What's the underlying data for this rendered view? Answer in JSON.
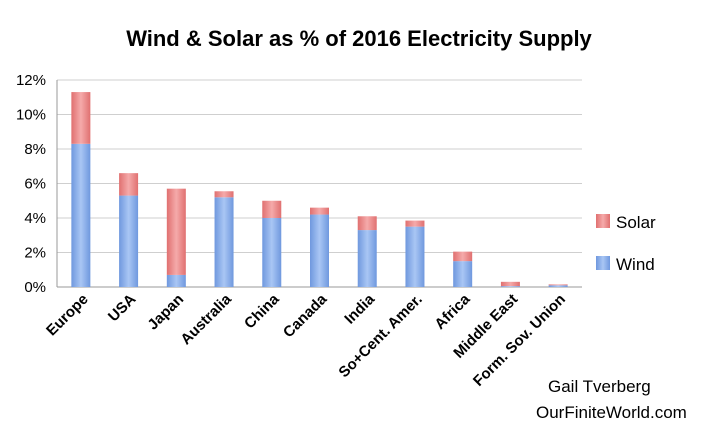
{
  "chart_data": {
    "type": "bar",
    "stacked": true,
    "title": "Wind & Solar as % of 2016 Electricity Supply",
    "categories": [
      "Europe",
      "USA",
      "Japan",
      "Australia",
      "China",
      "Canada",
      "India",
      "So+Cent. Amer.",
      "Africa",
      "Middle East",
      "Form. Sov. Union"
    ],
    "series": [
      {
        "name": "Wind",
        "color": "#7ea6e8",
        "values": [
          8.3,
          5.3,
          0.7,
          5.2,
          4.0,
          4.2,
          3.3,
          3.5,
          1.5,
          0.05,
          0.1
        ]
      },
      {
        "name": "Solar",
        "color": "#e88080",
        "values": [
          3.0,
          1.3,
          5.0,
          0.35,
          1.0,
          0.4,
          0.8,
          0.35,
          0.55,
          0.25,
          0.05
        ]
      }
    ],
    "y_ticks": [
      "0%",
      "2%",
      "4%",
      "6%",
      "8%",
      "10%",
      "12%"
    ],
    "ylim": [
      0,
      12
    ],
    "legend_position": "right",
    "gridlines": true
  },
  "credit": {
    "line1": "Gail Tverberg",
    "line2": "OurFiniteWorld.com"
  }
}
